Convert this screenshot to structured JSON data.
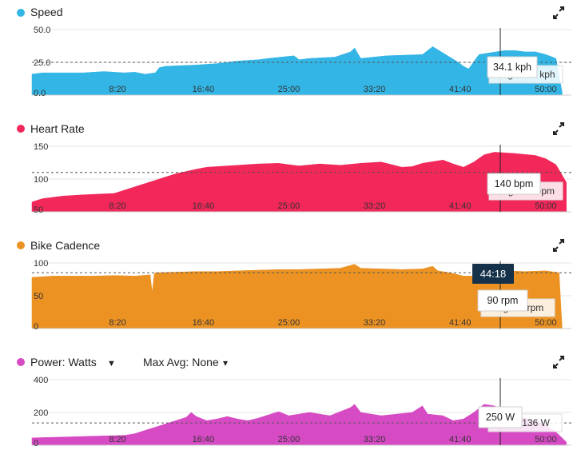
{
  "cursor": {
    "time_label": "44:18"
  },
  "chart_data": [
    {
      "type": "area",
      "title": "Speed",
      "color": "#33b5e5",
      "icon": "expand-icon",
      "x_ticks": [
        "8:20",
        "16:40",
        "25:00",
        "33:20",
        "41:40",
        "50:00"
      ],
      "x_tick_values": [
        8.33,
        16.67,
        25,
        33.33,
        41.67,
        50
      ],
      "xlim": [
        0,
        52.5
      ],
      "y_ticks": [
        {
          "label": "50.0",
          "value": 50
        },
        {
          "label": "25.0",
          "value": 25
        },
        {
          "label": "0.0",
          "value": 0
        }
      ],
      "ylim": [
        0,
        50
      ],
      "avg": 25,
      "avg_label": "Avg: 25.2 kph",
      "tooltip": "34.1 kph",
      "x": [
        0,
        1,
        5,
        7,
        9,
        10,
        11,
        12,
        12.4,
        13,
        16,
        18,
        20,
        22,
        23,
        25.5,
        26,
        27,
        29.5,
        31,
        31.4,
        32,
        34.5,
        38,
        39,
        41.5,
        42,
        42.5,
        43.5,
        46,
        47,
        48,
        49,
        50,
        51,
        51.6
      ],
      "y": [
        16,
        17,
        17,
        18,
        17,
        17.5,
        16,
        17,
        21,
        22,
        23,
        24,
        26,
        27,
        28,
        30,
        27,
        28,
        29,
        33,
        36,
        28,
        30,
        31,
        37,
        25,
        22,
        20,
        31,
        34,
        34,
        33,
        33,
        31,
        28,
        2
      ]
    },
    {
      "type": "area",
      "title": "Heart Rate",
      "color": "#f2275a",
      "icon": "expand-icon",
      "x_ticks": [
        "8:20",
        "16:40",
        "25:00",
        "33:20",
        "41:40",
        "50:00"
      ],
      "x_tick_values": [
        8.33,
        16.67,
        25,
        33.33,
        41.67,
        50
      ],
      "xlim": [
        0,
        52.5
      ],
      "y_ticks": [
        {
          "label": "150",
          "value": 150
        },
        {
          "label": "100",
          "value": 100
        },
        {
          "label": "50",
          "value": 50
        }
      ],
      "ylim": [
        50,
        150
      ],
      "avg": 110,
      "avg_label": "Avg: 111 bpm",
      "tooltip": "140 bpm",
      "x": [
        0,
        1,
        3,
        5,
        8,
        10,
        12,
        14,
        16,
        17,
        18,
        20,
        22,
        24,
        25,
        26,
        28,
        30,
        32,
        34,
        36,
        37,
        38,
        40,
        41,
        42,
        43,
        44,
        45,
        47,
        49,
        50,
        51,
        52
      ],
      "y": [
        65,
        70,
        74,
        76,
        78,
        88,
        98,
        108,
        115,
        118,
        119,
        121,
        123,
        124,
        122,
        120,
        123,
        121,
        124,
        126,
        118,
        119,
        124,
        129,
        123,
        118,
        126,
        137,
        141,
        139,
        136,
        131,
        122,
        95
      ]
    },
    {
      "type": "area",
      "title": "Bike Cadence",
      "color": "#ec9223",
      "icon": "expand-icon",
      "x_ticks": [
        "8:20",
        "16:40",
        "25:00",
        "33:20",
        "41:40",
        "50:00"
      ],
      "x_tick_values": [
        8.33,
        16.67,
        25,
        33.33,
        41.67,
        50
      ],
      "xlim": [
        0,
        52.5
      ],
      "y_ticks": [
        {
          "label": "100",
          "value": 100
        },
        {
          "label": "50",
          "value": 50
        },
        {
          "label": "0",
          "value": 0
        }
      ],
      "ylim": [
        0,
        100
      ],
      "avg": 85,
      "avg_label": "Avg: 86 rpm",
      "tooltip": "90 rpm",
      "x": [
        0,
        2,
        4,
        6,
        8,
        10,
        11.5,
        11.7,
        11.9,
        12,
        14,
        16,
        18,
        20,
        22,
        24,
        26,
        28,
        30,
        31.4,
        32,
        34,
        36,
        38,
        39,
        39.5,
        41,
        42,
        43,
        44,
        46,
        48,
        50,
        51.3,
        51.6
      ],
      "y": [
        78,
        80,
        80,
        80,
        81,
        80,
        82,
        55,
        83,
        85,
        86,
        87,
        87,
        88,
        89,
        90,
        90,
        91,
        92,
        98,
        92,
        91,
        90,
        91,
        95,
        88,
        84,
        80,
        80,
        86,
        88,
        87,
        88,
        85,
        0
      ]
    },
    {
      "type": "area",
      "title": "Power: Watts",
      "color": "#d64ac4",
      "icon": "expand-icon",
      "dropdowns": [
        {
          "label": "Power: Watts",
          "arrow": "▼"
        },
        {
          "label": "Max Avg: None",
          "arrow": "▾"
        }
      ],
      "x_ticks": [
        "8:20",
        "16:40",
        "25:00",
        "33:20",
        "41:40",
        "50:00"
      ],
      "x_tick_values": [
        8.33,
        16.67,
        25,
        33.33,
        41.67,
        50
      ],
      "xlim": [
        0,
        52.5
      ],
      "y_ticks": [
        {
          "label": "400",
          "value": 400
        },
        {
          "label": "200",
          "value": 200
        },
        {
          "label": "0",
          "value": 0
        }
      ],
      "ylim": [
        0,
        400
      ],
      "avg": 136,
      "avg_label": "Avg: 136 W",
      "tooltip": "250 W",
      "x": [
        0,
        3,
        6,
        9,
        10,
        11,
        12,
        13,
        14,
        15,
        15.5,
        16,
        17,
        18,
        19,
        20,
        21,
        22,
        23,
        24,
        25,
        27,
        29,
        31,
        31.4,
        32,
        34,
        37,
        38,
        38.5,
        40,
        41,
        42,
        43,
        44,
        45,
        47,
        49,
        50,
        51,
        52
      ],
      "y": [
        45,
        50,
        55,
        60,
        70,
        90,
        110,
        130,
        150,
        170,
        200,
        175,
        150,
        160,
        175,
        160,
        150,
        165,
        185,
        205,
        180,
        200,
        180,
        230,
        250,
        200,
        180,
        200,
        240,
        190,
        180,
        150,
        160,
        200,
        250,
        240,
        180,
        150,
        120,
        80,
        20
      ]
    }
  ]
}
